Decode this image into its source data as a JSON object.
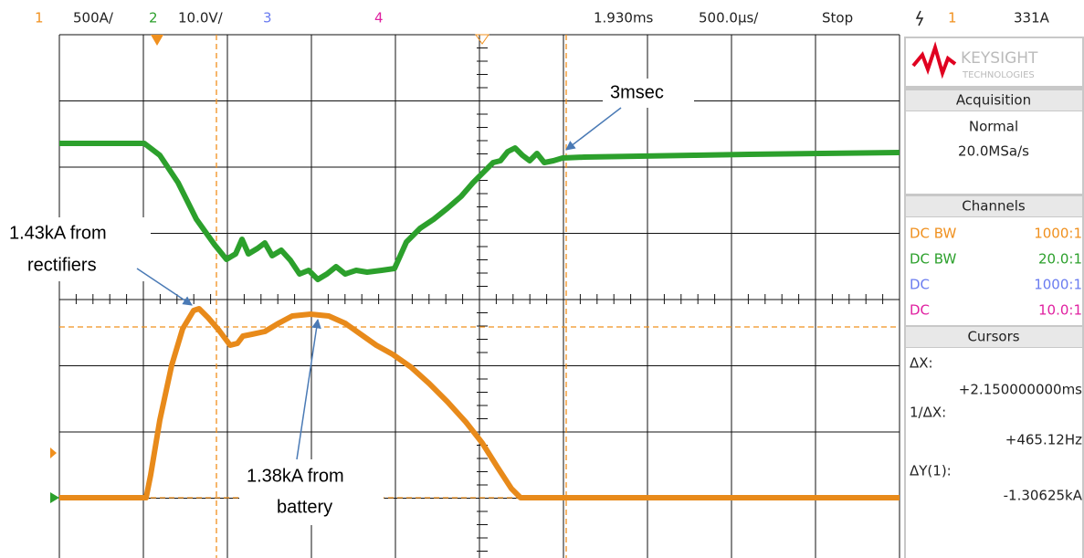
{
  "top_bar": {
    "ch1_number": "1",
    "ch1_scale": "500A/",
    "ch2_number": "2",
    "ch2_scale": "10.0V/",
    "ch3_number": "3",
    "ch4_number": "4",
    "time_position": "1.930ms",
    "time_scale": "500.0µs/",
    "run_state": "Stop",
    "trigger_source": "1",
    "trigger_level": "331A"
  },
  "panel": {
    "logo": "KEYSIGHT",
    "logo_sub": "TECHNOLOGIES",
    "acquisition": {
      "title": "Acquisition",
      "mode": "Normal",
      "rate": "20.0MSa/s"
    },
    "channels": {
      "title": "Channels",
      "rows": [
        [
          "DC BW",
          "1000:1"
        ],
        [
          "DC BW",
          "20.0:1"
        ],
        [
          "DC",
          "1000:1"
        ],
        [
          "DC",
          "10.0:1"
        ]
      ]
    },
    "cursors": {
      "title": "Cursors",
      "dx_label": "ΔX:",
      "dx_value": "+2.150000000ms",
      "inv_dx_label": "1/ΔX:",
      "inv_dx_value": "+465.12Hz",
      "dy_label": "ΔY(1):",
      "dy_value": "-1.30625kA"
    }
  },
  "annotations": {
    "green_note": "3msec",
    "peak_note": [
      "1.43kA from",
      "rectifiers"
    ],
    "battery_note": [
      "1.38kA from",
      "battery"
    ]
  }
}
